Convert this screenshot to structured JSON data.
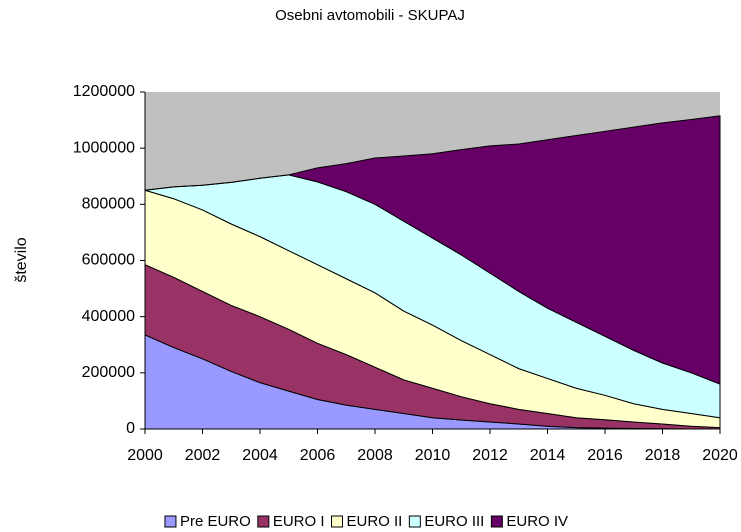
{
  "chart_data": {
    "type": "stacked_area",
    "title": "Osebni avtomobili - SKUPAJ",
    "y_label": "število",
    "x": [
      2000,
      2001,
      2002,
      2003,
      2004,
      2005,
      2006,
      2007,
      2008,
      2009,
      2010,
      2011,
      2012,
      2013,
      2014,
      2015,
      2016,
      2017,
      2018,
      2019,
      2020
    ],
    "series": [
      {
        "name": "Pre EURO",
        "color": "#9999ff",
        "values": [
          335000,
          290000,
          250000,
          205000,
          165000,
          135000,
          105000,
          85000,
          70000,
          55000,
          40000,
          32000,
          25000,
          18000,
          10000,
          5000,
          3000,
          2000,
          1000,
          0,
          0
        ]
      },
      {
        "name": "EURO I",
        "color": "#993366",
        "values": [
          250000,
          250000,
          240000,
          235000,
          235000,
          220000,
          200000,
          180000,
          150000,
          120000,
          105000,
          83000,
          65000,
          52000,
          45000,
          35000,
          30000,
          23000,
          17000,
          10000,
          5000
        ]
      },
      {
        "name": "EURO II",
        "color": "#ffffcc",
        "values": [
          265000,
          280000,
          290000,
          290000,
          285000,
          280000,
          280000,
          270000,
          265000,
          245000,
          225000,
          200000,
          175000,
          145000,
          125000,
          105000,
          87000,
          65000,
          52000,
          45000,
          35000
        ]
      },
      {
        "name": "EURO III",
        "color": "#ccffff",
        "values": [
          0,
          42000,
          88000,
          148000,
          208000,
          270000,
          295000,
          310000,
          315000,
          320000,
          310000,
          305000,
          290000,
          275000,
          250000,
          235000,
          210000,
          190000,
          165000,
          145000,
          120000
        ]
      },
      {
        "name": "EURO IV",
        "color": "#660066",
        "values": [
          0,
          0,
          0,
          0,
          0,
          0,
          50000,
          100000,
          165000,
          232000,
          300000,
          375000,
          453000,
          525000,
          600000,
          665000,
          730000,
          795000,
          855000,
          902000,
          955000
        ]
      }
    ],
    "xlim": [
      2000,
      2020
    ],
    "xticks": [
      2000,
      2002,
      2004,
      2006,
      2008,
      2010,
      2012,
      2014,
      2016,
      2018,
      2020
    ],
    "ylim": [
      0,
      1200000
    ],
    "yticks": [
      0,
      200000,
      400000,
      600000,
      800000,
      1000000,
      1200000
    ],
    "plot_background": "#c0c0c0",
    "legend": "bottom"
  }
}
